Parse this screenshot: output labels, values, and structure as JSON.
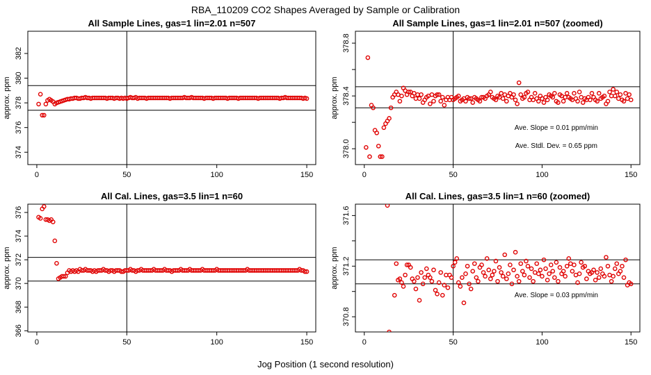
{
  "figure": {
    "title": "RBA_110209  CO2 Shapes Averaged by Sample or Calibration",
    "xlabel": "Jog Position (1 second resolution)"
  },
  "colors": {
    "points": "#e00000",
    "lines": "#000000"
  },
  "chart_data": [
    {
      "type": "scatter",
      "title": "All Sample Lines, gas=1 lin=2.01 n=507",
      "ylabel": "approx. ppm",
      "xlim": [
        -5,
        155
      ],
      "ylim": [
        373,
        383.8
      ],
      "xticks": [
        0,
        50,
        100,
        150
      ],
      "xtick_labels": [
        "0",
        "50",
        "100",
        "150"
      ],
      "yticks": [
        374,
        376,
        378,
        380,
        382
      ],
      "ytick_labels": [
        "374",
        "376",
        "378",
        "380",
        "382"
      ],
      "vline": 50,
      "hlines": [
        377.4,
        379.4
      ],
      "annotations": [],
      "x": [
        1,
        2,
        3,
        4,
        5,
        6,
        7,
        8,
        9,
        10,
        11,
        12,
        13,
        14,
        15,
        16,
        17,
        18,
        19,
        20,
        21,
        22,
        23,
        24,
        25,
        26,
        27,
        28,
        29,
        30,
        31,
        32,
        33,
        34,
        35,
        36,
        37,
        38,
        39,
        40,
        41,
        42,
        43,
        44,
        45,
        46,
        47,
        48,
        49,
        50,
        51,
        52,
        53,
        54,
        55,
        56,
        57,
        58,
        59,
        60,
        61,
        62,
        63,
        64,
        65,
        66,
        67,
        68,
        69,
        70,
        71,
        72,
        73,
        74,
        75,
        76,
        77,
        78,
        79,
        80,
        81,
        82,
        83,
        84,
        85,
        86,
        87,
        88,
        89,
        90,
        91,
        92,
        93,
        94,
        95,
        96,
        97,
        98,
        99,
        100,
        101,
        102,
        103,
        104,
        105,
        106,
        107,
        108,
        109,
        110,
        111,
        112,
        113,
        114,
        115,
        116,
        117,
        118,
        119,
        120,
        121,
        122,
        123,
        124,
        125,
        126,
        127,
        128,
        129,
        130,
        131,
        132,
        133,
        134,
        135,
        136,
        137,
        138,
        139,
        140,
        141,
        142,
        143,
        144,
        145,
        146,
        147,
        148,
        149,
        150
      ],
      "y": [
        377.9,
        378.7,
        377.0,
        377.0,
        377.9,
        378.2,
        378.3,
        378.2,
        378.1,
        377.9,
        378.0,
        378.05,
        378.1,
        378.15,
        378.2,
        378.25,
        378.3,
        378.3,
        378.35,
        378.35,
        378.4,
        378.4,
        378.35,
        378.35,
        378.4,
        378.4,
        378.45,
        378.4,
        378.4,
        378.35,
        378.4,
        378.4,
        378.4,
        378.4,
        378.4,
        378.4,
        378.4,
        378.4,
        378.35,
        378.4,
        378.4,
        378.4,
        378.35,
        378.4,
        378.4,
        378.35,
        378.4,
        378.35,
        378.4,
        378.35,
        378.4,
        378.45,
        378.4,
        378.4,
        378.45,
        378.35,
        378.4,
        378.4,
        378.4,
        378.4,
        378.35,
        378.4,
        378.4,
        378.4,
        378.4,
        378.4,
        378.4,
        378.4,
        378.4,
        378.4,
        378.4,
        378.4,
        378.4,
        378.35,
        378.4,
        378.4,
        378.4,
        378.4,
        378.4,
        378.4,
        378.4,
        378.45,
        378.4,
        378.4,
        378.4,
        378.45,
        378.4,
        378.4,
        378.4,
        378.4,
        378.4,
        378.4,
        378.35,
        378.4,
        378.4,
        378.4,
        378.4,
        378.35,
        378.4,
        378.4,
        378.4,
        378.4,
        378.4,
        378.4,
        378.4,
        378.35,
        378.4,
        378.4,
        378.4,
        378.4,
        378.4,
        378.35,
        378.4,
        378.4,
        378.4,
        378.4,
        378.4,
        378.4,
        378.4,
        378.4,
        378.4,
        378.4,
        378.35,
        378.4,
        378.4,
        378.4,
        378.4,
        378.4,
        378.4,
        378.4,
        378.4,
        378.4,
        378.4,
        378.4,
        378.35,
        378.4,
        378.4,
        378.45,
        378.4,
        378.4,
        378.4,
        378.4,
        378.4,
        378.4,
        378.4,
        378.4,
        378.4,
        378.35,
        378.4,
        378.35
      ]
    },
    {
      "type": "scatter",
      "title": "All Sample Lines, gas=1 lin=2.01 n=507 (zoomed)",
      "ylabel": "approx. ppm",
      "xlim": [
        -5,
        155
      ],
      "ylim": [
        377.88,
        378.89
      ],
      "xticks": [
        0,
        50,
        100,
        150
      ],
      "xtick_labels": [
        "0",
        "50",
        "100",
        "150"
      ],
      "yticks": [
        378.0,
        378.2,
        378.4,
        378.6,
        378.8
      ],
      "ytick_labels": [
        "378.0",
        "",
        "378.4",
        "",
        "378.8"
      ],
      "vline": 50,
      "hlines": [
        378.31,
        378.47
      ],
      "annotations": [
        "Ave. Slope =  0.01  ppm/min",
        "Ave. Stdl. Dev. =  0.65  ppm"
      ],
      "x": [
        1,
        2,
        3,
        4,
        5,
        6,
        7,
        8,
        9,
        10,
        11,
        12,
        13,
        14,
        15,
        16,
        17,
        18,
        19,
        20,
        21,
        22,
        23,
        24,
        25,
        26,
        27,
        28,
        29,
        30,
        31,
        32,
        33,
        34,
        35,
        36,
        37,
        38,
        39,
        40,
        41,
        42,
        43,
        44,
        45,
        46,
        47,
        48,
        49,
        50,
        51,
        52,
        53,
        54,
        55,
        56,
        57,
        58,
        59,
        60,
        61,
        62,
        63,
        64,
        65,
        66,
        67,
        68,
        69,
        70,
        71,
        72,
        73,
        74,
        75,
        76,
        77,
        78,
        79,
        80,
        81,
        82,
        83,
        84,
        85,
        86,
        87,
        88,
        89,
        90,
        91,
        92,
        93,
        94,
        95,
        96,
        97,
        98,
        99,
        100,
        101,
        102,
        103,
        104,
        105,
        106,
        107,
        108,
        109,
        110,
        111,
        112,
        113,
        114,
        115,
        116,
        117,
        118,
        119,
        120,
        121,
        122,
        123,
        124,
        125,
        126,
        127,
        128,
        129,
        130,
        131,
        132,
        133,
        134,
        135,
        136,
        137,
        138,
        139,
        140,
        141,
        142,
        143,
        144,
        145,
        146,
        147,
        148,
        149,
        150
      ],
      "y": [
        378.01,
        378.69,
        377.94,
        378.33,
        378.31,
        378.14,
        378.12,
        378.02,
        377.94,
        377.94,
        378.16,
        378.19,
        378.21,
        378.23,
        378.31,
        378.39,
        378.41,
        378.43,
        378.41,
        378.36,
        378.4,
        378.46,
        378.44,
        378.41,
        378.43,
        378.43,
        378.4,
        378.42,
        378.38,
        378.41,
        378.38,
        378.41,
        378.35,
        378.37,
        378.39,
        378.4,
        378.34,
        378.41,
        378.36,
        378.4,
        378.41,
        378.41,
        378.36,
        378.39,
        378.33,
        378.37,
        378.39,
        378.37,
        378.39,
        378.37,
        378.38,
        378.39,
        378.4,
        378.36,
        378.37,
        378.38,
        378.36,
        378.39,
        378.38,
        378.38,
        378.35,
        378.39,
        378.38,
        378.37,
        378.36,
        378.39,
        378.39,
        378.38,
        378.4,
        378.41,
        378.43,
        378.39,
        378.38,
        378.37,
        378.4,
        378.39,
        378.42,
        378.38,
        378.41,
        378.36,
        378.4,
        378.42,
        378.39,
        378.41,
        378.37,
        378.34,
        378.5,
        378.41,
        378.38,
        378.39,
        378.42,
        378.43,
        378.37,
        378.39,
        378.37,
        378.42,
        378.38,
        378.36,
        378.4,
        378.38,
        378.35,
        378.39,
        378.37,
        378.41,
        378.4,
        378.39,
        378.42,
        378.36,
        378.35,
        378.41,
        378.4,
        378.36,
        378.39,
        378.42,
        378.39,
        378.38,
        378.37,
        378.42,
        378.38,
        378.36,
        378.43,
        378.39,
        378.35,
        378.38,
        378.37,
        378.39,
        378.37,
        378.42,
        378.39,
        378.37,
        378.36,
        378.42,
        378.38,
        378.39,
        378.4,
        378.34,
        378.36,
        378.43,
        378.4,
        378.45,
        378.4,
        378.43,
        378.38,
        378.41,
        378.37,
        378.36,
        378.42,
        378.38,
        378.41,
        378.37
      ]
    },
    {
      "type": "scatter",
      "title": "All Cal. Lines, gas=3.5 lin=1 n=60",
      "ylabel": "approx. ppm",
      "xlim": [
        -5,
        155
      ],
      "ylim": [
        365.9,
        376.7
      ],
      "xticks": [
        0,
        50,
        100,
        150
      ],
      "xtick_labels": [
        "0",
        "50",
        "100",
        "150"
      ],
      "yticks": [
        366,
        368,
        370,
        372,
        374,
        376
      ],
      "ytick_labels": [
        "366",
        "368",
        "370",
        "372",
        "374",
        "376"
      ],
      "vline": 50,
      "hlines": [
        370.2,
        372.2
      ],
      "annotations": [],
      "x": [
        1,
        2,
        3,
        4,
        5,
        6,
        7,
        8,
        9,
        10,
        11,
        12,
        13,
        14,
        15,
        16,
        17,
        18,
        19,
        20,
        21,
        22,
        23,
        24,
        25,
        26,
        27,
        28,
        29,
        30,
        31,
        32,
        33,
        34,
        35,
        36,
        37,
        38,
        39,
        40,
        41,
        42,
        43,
        44,
        45,
        46,
        47,
        48,
        49,
        50,
        51,
        52,
        53,
        54,
        55,
        56,
        57,
        58,
        59,
        60,
        61,
        62,
        63,
        64,
        65,
        66,
        67,
        68,
        69,
        70,
        71,
        72,
        73,
        74,
        75,
        76,
        77,
        78,
        79,
        80,
        81,
        82,
        83,
        84,
        85,
        86,
        87,
        88,
        89,
        90,
        91,
        92,
        93,
        94,
        95,
        96,
        97,
        98,
        99,
        100,
        101,
        102,
        103,
        104,
        105,
        106,
        107,
        108,
        109,
        110,
        111,
        112,
        113,
        114,
        115,
        116,
        117,
        118,
        119,
        120,
        121,
        122,
        123,
        124,
        125,
        126,
        127,
        128,
        129,
        130,
        131,
        132,
        133,
        134,
        135,
        136,
        137,
        138,
        139,
        140,
        141,
        142,
        143,
        144,
        145,
        146,
        147,
        148,
        149,
        150
      ],
      "y": [
        375.6,
        375.5,
        376.3,
        376.5,
        375.4,
        375.4,
        375.3,
        375.4,
        375.2,
        373.6,
        371.7,
        370.4,
        370.5,
        370.6,
        370.6,
        370.6,
        370.9,
        371.1,
        371.0,
        371.1,
        371.0,
        371.1,
        371.0,
        371.2,
        371.1,
        371.1,
        371.2,
        371.1,
        371.1,
        371.1,
        371.0,
        371.1,
        371.0,
        371.1,
        371.1,
        371.1,
        371.2,
        371.1,
        371.1,
        371.0,
        371.1,
        371.1,
        371.0,
        371.1,
        371.1,
        371.1,
        371.0,
        371.0,
        371.1,
        371.1,
        371.1,
        371.2,
        371.1,
        371.1,
        371.0,
        371.1,
        371.1,
        371.2,
        371.1,
        371.1,
        371.1,
        371.1,
        371.1,
        371.1,
        371.2,
        371.1,
        371.1,
        371.1,
        371.1,
        371.1,
        371.2,
        371.1,
        371.1,
        371.1,
        371.0,
        371.1,
        371.1,
        371.1,
        371.1,
        371.2,
        371.1,
        371.1,
        371.1,
        371.1,
        371.2,
        371.1,
        371.1,
        371.1,
        371.1,
        371.1,
        371.1,
        371.2,
        371.1,
        371.1,
        371.1,
        371.1,
        371.1,
        371.1,
        371.1,
        371.2,
        371.1,
        371.1,
        371.1,
        371.1,
        371.1,
        371.1,
        371.1,
        371.1,
        371.1,
        371.1,
        371.1,
        371.1,
        371.1,
        371.1,
        371.1,
        371.1,
        371.2,
        371.1,
        371.1,
        371.1,
        371.1,
        371.1,
        371.1,
        371.1,
        371.1,
        371.1,
        371.1,
        371.1,
        371.1,
        371.1,
        371.1,
        371.1,
        371.1,
        371.1,
        371.1,
        371.1,
        371.1,
        371.1,
        371.1,
        371.1,
        371.1,
        371.1,
        371.1,
        371.1,
        371.1,
        371.2,
        371.1,
        371.1,
        371.0,
        371.0
      ]
    },
    {
      "type": "scatter",
      "title": "All Cal. Lines, gas=3.5 lin=1 n=60 (zoomed)",
      "ylabel": "approx. ppm",
      "xlim": [
        -5,
        155
      ],
      "ylim": [
        370.68,
        371.69
      ],
      "xticks": [
        0,
        50,
        100,
        150
      ],
      "xtick_labels": [
        "0",
        "50",
        "100",
        "150"
      ],
      "yticks": [
        370.8,
        371.0,
        371.2,
        371.4,
        371.6
      ],
      "ytick_labels": [
        "370.8",
        "",
        "371.2",
        "",
        "371.6"
      ],
      "vline": 50,
      "hlines": [
        371.06,
        371.25
      ],
      "annotations": [
        "Ave. Slope =  0.03  ppm/min"
      ],
      "x": [
        13,
        14,
        17,
        18,
        19,
        20,
        21,
        22,
        23,
        24,
        25,
        26,
        27,
        28,
        29,
        30,
        31,
        32,
        33,
        34,
        35,
        36,
        37,
        38,
        39,
        40,
        41,
        42,
        43,
        44,
        45,
        46,
        47,
        48,
        49,
        50,
        51,
        52,
        53,
        54,
        55,
        56,
        57,
        58,
        59,
        60,
        61,
        62,
        63,
        64,
        65,
        66,
        67,
        68,
        69,
        70,
        71,
        72,
        73,
        74,
        75,
        76,
        77,
        78,
        79,
        80,
        81,
        82,
        83,
        84,
        85,
        86,
        87,
        88,
        89,
        90,
        91,
        92,
        93,
        94,
        95,
        96,
        97,
        98,
        99,
        100,
        101,
        102,
        103,
        104,
        105,
        106,
        107,
        108,
        109,
        110,
        111,
        112,
        113,
        114,
        115,
        116,
        117,
        118,
        119,
        120,
        121,
        122,
        123,
        124,
        125,
        126,
        127,
        128,
        129,
        130,
        131,
        132,
        133,
        134,
        135,
        136,
        137,
        138,
        139,
        140,
        141,
        142,
        143,
        144,
        145,
        146,
        147,
        148,
        149,
        150
      ],
      "y": [
        371.68,
        370.68,
        370.97,
        371.22,
        371.09,
        371.1,
        371.07,
        371.04,
        371.13,
        371.21,
        371.21,
        371.19,
        371.1,
        371.08,
        371.02,
        371.11,
        370.93,
        371.15,
        371.06,
        371.11,
        371.18,
        371.13,
        371.11,
        371.08,
        371.17,
        371.01,
        370.98,
        371.07,
        371.15,
        370.97,
        371.05,
        371.13,
        371.03,
        371.13,
        371.11,
        371.2,
        371.23,
        371.26,
        371.07,
        371.04,
        371.11,
        370.91,
        371.14,
        371.2,
        371.06,
        371.02,
        371.16,
        371.22,
        371.11,
        371.08,
        371.19,
        371.21,
        371.15,
        371.12,
        371.26,
        371.17,
        371.1,
        371.13,
        371.16,
        371.24,
        371.08,
        371.19,
        371.15,
        371.12,
        371.29,
        371.1,
        371.14,
        371.21,
        371.06,
        371.17,
        371.31,
        371.12,
        371.08,
        371.22,
        371.16,
        371.13,
        371.24,
        371.2,
        371.11,
        371.18,
        371.08,
        371.15,
        371.22,
        371.14,
        371.17,
        371.12,
        371.25,
        371.18,
        371.09,
        371.14,
        371.21,
        371.16,
        371.11,
        371.23,
        371.08,
        371.19,
        371.14,
        371.16,
        371.12,
        371.2,
        371.26,
        371.22,
        371.16,
        371.21,
        371.13,
        371.07,
        371.14,
        371.23,
        371.19,
        371.2,
        371.1,
        371.16,
        371.14,
        371.15,
        371.17,
        371.09,
        371.15,
        371.11,
        371.18,
        371.14,
        371.12,
        371.27,
        371.2,
        371.13,
        371.08,
        371.12,
        371.18,
        371.22,
        371.14,
        371.16,
        371.2,
        371.11,
        371.25,
        371.05,
        371.07,
        371.06
      ]
    }
  ]
}
